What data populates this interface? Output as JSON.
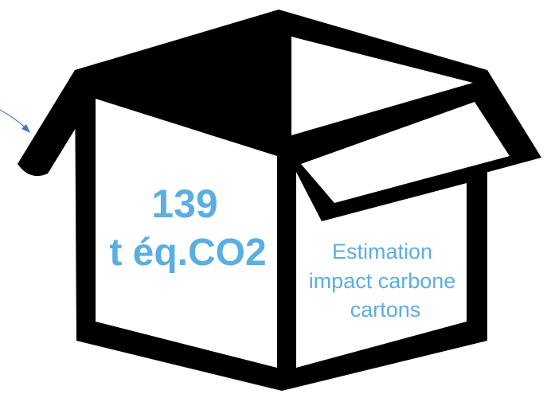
{
  "colors": {
    "box": "#000000",
    "text": "#5baee0",
    "pointer": "#4a76b8"
  },
  "icons": {
    "box": "open-box-icon",
    "pointer": "arrow-icon"
  },
  "emissions": {
    "value": "139",
    "unit": "t éq.CO2"
  },
  "label": {
    "line1": "Estimation",
    "line2": "impact carbone",
    "line3": "cartons"
  }
}
